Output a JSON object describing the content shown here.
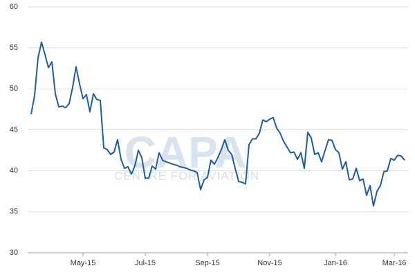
{
  "chart_data": {
    "type": "line",
    "watermark": "CAPA",
    "watermark_subtitle": "CENTRE FOR AVIATION",
    "categories": [
      null,
      null,
      null,
      null,
      null,
      null,
      null,
      null,
      null,
      null,
      null,
      null,
      null,
      null,
      null,
      "May-15",
      null,
      null,
      null,
      null,
      null,
      null,
      null,
      null,
      null,
      null,
      null,
      null,
      null,
      null,
      null,
      null,
      null,
      "Jul-15",
      null,
      null,
      null,
      null,
      null,
      null,
      null,
      null,
      null,
      null,
      null,
      null,
      null,
      null,
      null,
      null,
      null,
      "Sep-15",
      null,
      null,
      null,
      null,
      null,
      null,
      null,
      null,
      null,
      null,
      null,
      null,
      null,
      null,
      null,
      null,
      null,
      "Nov-15",
      null,
      null,
      null,
      null,
      null,
      null,
      null,
      null,
      null,
      null,
      null,
      null,
      null,
      null,
      null,
      null,
      null,
      null,
      "Jan-16",
      null,
      null,
      null,
      null,
      null,
      null,
      null,
      null,
      null,
      null,
      null,
      null,
      null,
      null,
      null,
      null,
      "Mar-16",
      null,
      null,
      null
    ],
    "values": [
      46.9,
      49.2,
      53.8,
      55.7,
      54.2,
      52.6,
      53.3,
      49.4,
      47.8,
      47.9,
      47.7,
      48.2,
      50.2,
      52.7,
      50.6,
      48.8,
      49.3,
      47.2,
      49.4,
      48.7,
      48.6,
      42.8,
      42.6,
      42.0,
      42.3,
      43.8,
      41.4,
      40.3,
      40.5,
      39.6,
      40.6,
      42.5,
      41.6,
      39.1,
      39.1,
      40.6,
      40.2,
      42.2,
      41.3,
      41.1,
      40.96,
      40.8,
      40.7,
      40.5,
      40.4,
      40.3,
      40.1,
      40.0,
      39.8,
      37.7,
      38.9,
      39.2,
      41.3,
      40.8,
      41.6,
      42.6,
      43.8,
      42.5,
      42.0,
      40.3,
      38.7,
      38.6,
      38.4,
      43.2,
      43.9,
      43.9,
      44.6,
      46.2,
      46.0,
      46.3,
      46.5,
      45.2,
      44.6,
      43.6,
      42.9,
      42.2,
      42.3,
      41.4,
      42.2,
      40.3,
      44.7,
      44.0,
      42.0,
      42.2,
      41.1,
      42.5,
      43.8,
      43.7,
      42.6,
      42.2,
      40.2,
      41.1,
      38.9,
      39.0,
      40.3,
      38.8,
      39.0,
      37.0,
      38.2,
      35.7,
      37.5,
      38.2,
      39.9,
      40.0,
      41.5,
      41.3,
      41.9,
      41.8,
      41.3
    ],
    "color": "#1f5c9e",
    "ylim": [
      30,
      60
    ],
    "yticks": [
      30,
      35,
      40,
      45,
      50,
      55,
      60
    ],
    "grid": true
  }
}
